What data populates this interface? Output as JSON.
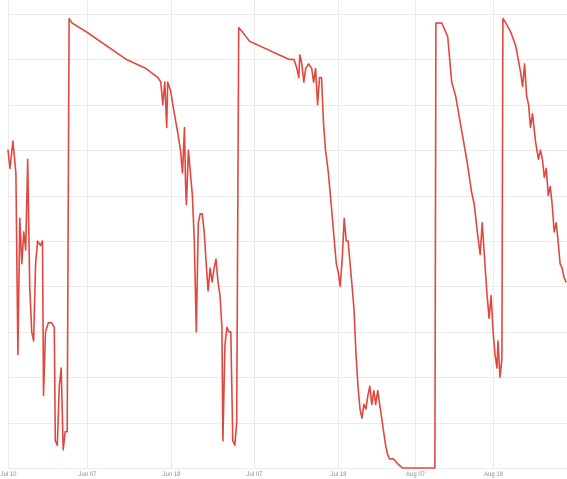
{
  "chart_data": {
    "type": "line",
    "title": "",
    "xlabel": "",
    "ylabel": "",
    "grid": true,
    "legend": "none",
    "colors": {
      "series": "#e0483f",
      "grid": "#ececec",
      "tick_text": "#8a8a8a"
    },
    "x_ticks": [
      {
        "x": 0,
        "label": "Jul 10"
      },
      {
        "x": 80,
        "label": "Jun 07"
      },
      {
        "x": 165,
        "label": "Jun 18"
      },
      {
        "x": 250,
        "label": "Jul 07"
      },
      {
        "x": 335,
        "label": "Jul 18"
      },
      {
        "x": 413,
        "label": "Aug 07"
      },
      {
        "x": 492,
        "label": "Aug 18"
      }
    ],
    "xlim": [
      0,
      567
    ],
    "ylim": [
      0,
      100
    ],
    "y_grid_values": [
      0,
      10,
      20,
      30,
      40,
      50,
      60,
      70,
      80,
      90,
      100
    ],
    "series": [
      {
        "values": [
          [
            0,
            70
          ],
          [
            2,
            66
          ],
          [
            5,
            72
          ],
          [
            8,
            65
          ],
          [
            10,
            25
          ],
          [
            12,
            55
          ],
          [
            14,
            45
          ],
          [
            16,
            52
          ],
          [
            18,
            48
          ],
          [
            20,
            68
          ],
          [
            22,
            40
          ],
          [
            24,
            30
          ],
          [
            26,
            28
          ],
          [
            28,
            45
          ],
          [
            30,
            50
          ],
          [
            33,
            49
          ],
          [
            35,
            50
          ],
          [
            36,
            16
          ],
          [
            38,
            30
          ],
          [
            41,
            32
          ],
          [
            44,
            32
          ],
          [
            47,
            31
          ],
          [
            48,
            6
          ],
          [
            50,
            5
          ],
          [
            52,
            18
          ],
          [
            54,
            22
          ],
          [
            56,
            4
          ],
          [
            58,
            8
          ],
          [
            60,
            8
          ],
          [
            62,
            99
          ],
          [
            65,
            98
          ],
          [
            80,
            96
          ],
          [
            100,
            93
          ],
          [
            120,
            90
          ],
          [
            140,
            88
          ],
          [
            152,
            86
          ],
          [
            155,
            85
          ],
          [
            157,
            80
          ],
          [
            159,
            85
          ],
          [
            161,
            75
          ],
          [
            162,
            85
          ],
          [
            165,
            83
          ],
          [
            168,
            79
          ],
          [
            172,
            74
          ],
          [
            175,
            70
          ],
          [
            177,
            65
          ],
          [
            179,
            75
          ],
          [
            180,
            63
          ],
          [
            181,
            58
          ],
          [
            183,
            70
          ],
          [
            185,
            65
          ],
          [
            187,
            60
          ],
          [
            189,
            50
          ],
          [
            190,
            40
          ],
          [
            191,
            30
          ],
          [
            193,
            54
          ],
          [
            195,
            56
          ],
          [
            197,
            56
          ],
          [
            199,
            52
          ],
          [
            201,
            45
          ],
          [
            203,
            39
          ],
          [
            205,
            44
          ],
          [
            207,
            41
          ],
          [
            209,
            44
          ],
          [
            211,
            46
          ],
          [
            213,
            41
          ],
          [
            215,
            38
          ],
          [
            217,
            31
          ],
          [
            218,
            6
          ],
          [
            220,
            27
          ],
          [
            222,
            31
          ],
          [
            224,
            30
          ],
          [
            226,
            30
          ],
          [
            228,
            6
          ],
          [
            230,
            5
          ],
          [
            232,
            10
          ],
          [
            234,
            97
          ],
          [
            238,
            96
          ],
          [
            245,
            94
          ],
          [
            255,
            93
          ],
          [
            265,
            92
          ],
          [
            275,
            91
          ],
          [
            285,
            90
          ],
          [
            290,
            90
          ],
          [
            293,
            88
          ],
          [
            295,
            86
          ],
          [
            296,
            91
          ],
          [
            298,
            89
          ],
          [
            300,
            85
          ],
          [
            302,
            88
          ],
          [
            305,
            89
          ],
          [
            308,
            88
          ],
          [
            310,
            85
          ],
          [
            312,
            88
          ],
          [
            314,
            80
          ],
          [
            316,
            86
          ],
          [
            318,
            86
          ],
          [
            320,
            76
          ],
          [
            322,
            70
          ],
          [
            325,
            65
          ],
          [
            327,
            60
          ],
          [
            329,
            55
          ],
          [
            331,
            50
          ],
          [
            333,
            45
          ],
          [
            335,
            43
          ],
          [
            337,
            40
          ],
          [
            339,
            46
          ],
          [
            341,
            55
          ],
          [
            343,
            50
          ],
          [
            345,
            50
          ],
          [
            347,
            45
          ],
          [
            349,
            40
          ],
          [
            351,
            35
          ],
          [
            353,
            25
          ],
          [
            355,
            18
          ],
          [
            357,
            13
          ],
          [
            359,
            11
          ],
          [
            361,
            14
          ],
          [
            363,
            13
          ],
          [
            365,
            16
          ],
          [
            367,
            18
          ],
          [
            369,
            14
          ],
          [
            371,
            17
          ],
          [
            373,
            14
          ],
          [
            375,
            17
          ],
          [
            377,
            14
          ],
          [
            379,
            11
          ],
          [
            381,
            8
          ],
          [
            383,
            5
          ],
          [
            385,
            3
          ],
          [
            387,
            2
          ],
          [
            389,
            2
          ],
          [
            391,
            2
          ],
          [
            395,
            1
          ],
          [
            400,
            0
          ],
          [
            410,
            0
          ],
          [
            420,
            0
          ],
          [
            430,
            0
          ],
          [
            433,
            0
          ],
          [
            434,
            98
          ],
          [
            440,
            98
          ],
          [
            446,
            95
          ],
          [
            448,
            90
          ],
          [
            450,
            85
          ],
          [
            454,
            82
          ],
          [
            458,
            77
          ],
          [
            462,
            72
          ],
          [
            466,
            67
          ],
          [
            470,
            61
          ],
          [
            473,
            58
          ],
          [
            476,
            52
          ],
          [
            479,
            47
          ],
          [
            481,
            54
          ],
          [
            484,
            44
          ],
          [
            486,
            38
          ],
          [
            488,
            33
          ],
          [
            490,
            38
          ],
          [
            492,
            30
          ],
          [
            494,
            25
          ],
          [
            496,
            22
          ],
          [
            497,
            28
          ],
          [
            498,
            24
          ],
          [
            499,
            20
          ],
          [
            501,
            24
          ],
          [
            502,
            99
          ],
          [
            505,
            98
          ],
          [
            510,
            96
          ],
          [
            515,
            93
          ],
          [
            520,
            87
          ],
          [
            522,
            84
          ],
          [
            524,
            89
          ],
          [
            526,
            82
          ],
          [
            528,
            80
          ],
          [
            530,
            75
          ],
          [
            532,
            78
          ],
          [
            535,
            72
          ],
          [
            538,
            68
          ],
          [
            540,
            70
          ],
          [
            542,
            68
          ],
          [
            544,
            64
          ],
          [
            546,
            66
          ],
          [
            548,
            60
          ],
          [
            550,
            62
          ],
          [
            552,
            58
          ],
          [
            554,
            52
          ],
          [
            556,
            54
          ],
          [
            558,
            50
          ],
          [
            560,
            45
          ],
          [
            562,
            44
          ],
          [
            564,
            42
          ],
          [
            566,
            41
          ]
        ]
      }
    ]
  }
}
